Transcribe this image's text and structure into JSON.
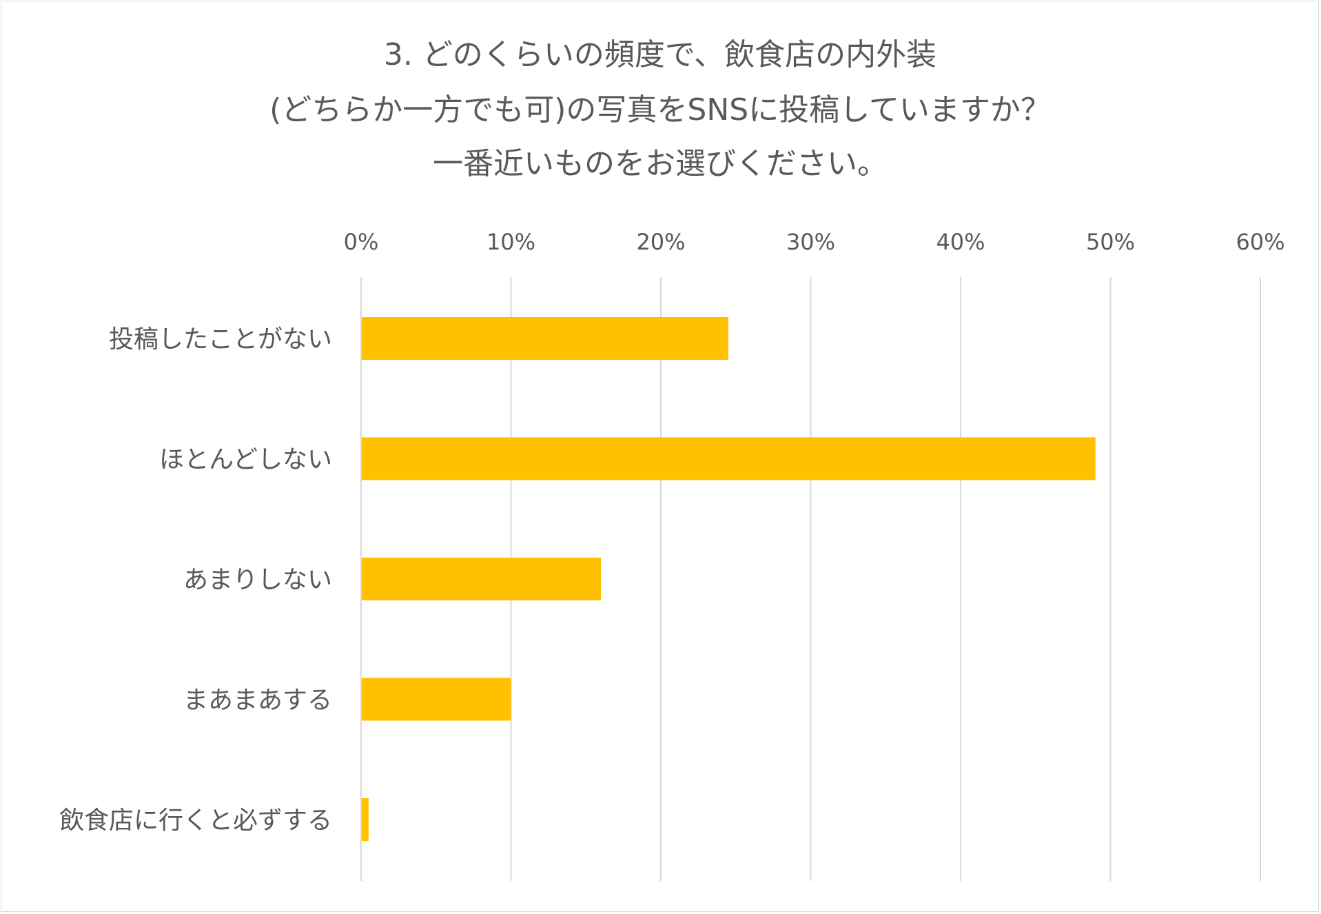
{
  "chart_data": {
    "type": "bar",
    "orientation": "horizontal",
    "title_lines": [
      "3. どのくらいの頻度で、飲食店の内外装",
      "(どちらか一方でも可)の写真をSNSに投稿していますか？",
      "一番近いものをお選びください。"
    ],
    "categories": [
      "投稿したことがない",
      "ほとんどしない",
      "あまりしない",
      "まあまあする",
      "飲食店に行くと必ずする"
    ],
    "values": [
      24.5,
      49.0,
      16.0,
      10.0,
      0.5
    ],
    "value_unit": "%",
    "xlim": [
      0,
      60
    ],
    "x_ticks": [
      0,
      10,
      20,
      30,
      40,
      50,
      60
    ],
    "x_tick_labels": [
      "0%",
      "10%",
      "20%",
      "30%",
      "40%",
      "50%",
      "60%"
    ],
    "x_axis_position": "top",
    "grid": true,
    "legend": "none",
    "bar_color": "#FFC000"
  }
}
